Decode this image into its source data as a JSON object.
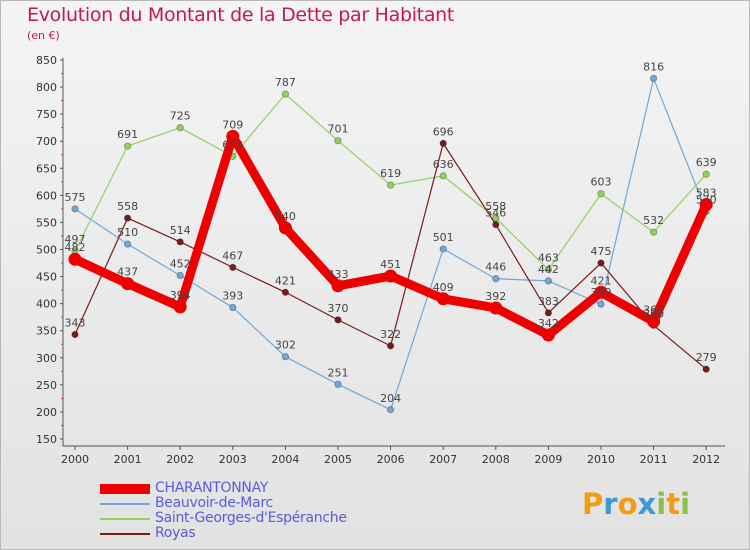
{
  "header": {
    "title": "Evolution du Montant de la Dette par Habitant",
    "subtitle": "(en €)"
  },
  "chart_data": {
    "type": "line",
    "title": "Evolution du Montant de la Dette par Habitant",
    "subtitle": "(en €)",
    "xlabel": "",
    "ylabel": "",
    "x": [
      "2000",
      "2001",
      "2002",
      "2003",
      "2004",
      "2005",
      "2006",
      "2007",
      "2008",
      "2009",
      "2010",
      "2011",
      "2012"
    ],
    "ylim": [
      150,
      850
    ],
    "yticks": [
      150,
      200,
      250,
      300,
      350,
      400,
      450,
      500,
      550,
      600,
      650,
      700,
      750,
      800,
      850
    ],
    "grid": false,
    "legend_position": "bottom-left",
    "series": [
      {
        "name": "CHARANTONNAY",
        "color": "#ee0000",
        "values": [
          482,
          437,
          394,
          709,
          540,
          433,
          451,
          409,
          392,
          342,
          421,
          367,
          583
        ]
      },
      {
        "name": "Beauvoir-de-Marc",
        "color": "#6fa8dc",
        "values": [
          575,
          510,
          452,
          393,
          302,
          251,
          204,
          501,
          446,
          442,
          399,
          816,
          570
        ]
      },
      {
        "name": "Saint-Georges-d'Espéranche",
        "color": "#8fd35f",
        "values": [
          497,
          691,
          725,
          672,
          787,
          701,
          619,
          636,
          558,
          463,
          603,
          532,
          639
        ]
      },
      {
        "name": "Royas",
        "color": "#7a1a1a",
        "values": [
          343,
          558,
          514,
          467,
          421,
          370,
          322,
          696,
          546,
          383,
          475,
          360,
          279
        ]
      }
    ]
  },
  "logo": {
    "letters": [
      "P",
      "r",
      "o",
      "x",
      "i",
      "t",
      "i"
    ],
    "colors": [
      "#f39c12",
      "#3a9ad9",
      "#f39c12",
      "#3a9ad9",
      "#8bc34a",
      "#f39c12",
      "#8bc34a"
    ]
  }
}
